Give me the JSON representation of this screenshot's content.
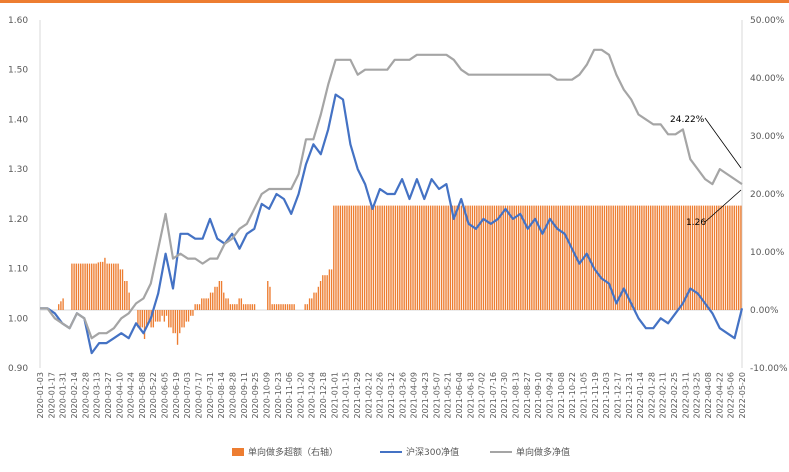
{
  "chart_data": {
    "type": "bar+line",
    "left_axis": {
      "ylim": [
        0.9,
        1.6
      ],
      "ticks": [
        "0.90",
        "1.00",
        "1.10",
        "1.20",
        "1.30",
        "1.40",
        "1.50",
        "1.60"
      ]
    },
    "right_axis": {
      "ylim": [
        -10,
        50
      ],
      "ticks": [
        "-10.00%",
        "0.00%",
        "10.00%",
        "20.00%",
        "30.00%",
        "40.00%",
        "50.00%"
      ]
    },
    "x_tick_labels": [
      "2020-01-03",
      "2020-01-17",
      "2020-01-31",
      "2020-02-14",
      "2020-02-28",
      "2020-03-13",
      "2020-03-27",
      "2020-04-10",
      "2020-04-24",
      "2020-05-08",
      "2020-05-22",
      "2020-06-05",
      "2020-06-19",
      "2020-07-03",
      "2020-07-17",
      "2020-07-31",
      "2020-08-14",
      "2020-08-28",
      "2020-09-11",
      "2020-09-25",
      "2020-10-09",
      "2020-10-23",
      "2020-11-06",
      "2020-11-20",
      "2020-12-04",
      "2020-12-18",
      "2021-01-01",
      "2021-01-15",
      "2021-01-29",
      "2021-02-12",
      "2021-02-26",
      "2021-03-12",
      "2021-03-26",
      "2021-04-09",
      "2021-04-23",
      "2021-05-07",
      "2021-05-21",
      "2021-06-04",
      "2021-06-18",
      "2021-07-02",
      "2021-07-16",
      "2021-07-30",
      "2021-08-13",
      "2021-08-27",
      "2021-09-10",
      "2021-09-24",
      "2021-10-08",
      "2021-10-22",
      "2021-11-05",
      "2021-11-19",
      "2021-12-03",
      "2021-12-17",
      "2021-12-31",
      "2022-01-14",
      "2022-01-28",
      "2022-02-11",
      "2022-02-25",
      "2022-03-11",
      "2022-03-25",
      "2022-04-08",
      "2022-04-22",
      "2022-05-06",
      "2022-05-20"
    ],
    "series": [
      {
        "name": "单向做多超额（右轴）",
        "kind": "bar",
        "axis": "right",
        "color": "#ED7D31",
        "values": [
          0,
          0,
          0,
          0,
          0,
          0,
          0,
          0,
          1,
          1.5,
          2,
          0,
          0,
          0,
          8,
          8,
          8,
          8,
          8,
          8,
          8,
          8,
          8,
          8,
          8,
          8,
          8.2,
          8.3,
          8.3,
          9,
          8,
          8,
          8,
          8,
          8,
          8,
          7,
          7,
          5,
          5,
          3,
          0,
          0,
          0,
          -3,
          -3,
          -3,
          -5,
          -3,
          -2,
          -3,
          -3,
          -2,
          -2,
          -2,
          -1,
          -2,
          -1,
          -3,
          -3,
          -4,
          -4,
          -6,
          -4,
          -3,
          -3,
          -2,
          -2,
          -1,
          -1,
          1,
          1,
          1,
          2,
          2,
          2,
          2,
          3,
          3,
          4,
          4,
          5,
          5,
          3,
          2,
          2,
          1,
          1,
          1,
          1,
          2,
          2,
          1,
          1,
          1,
          1,
          1,
          1,
          0,
          0,
          0,
          0,
          0,
          5,
          4,
          1,
          1,
          1,
          1,
          1,
          1,
          1,
          1,
          1,
          1,
          1,
          0,
          0,
          0,
          0,
          1,
          1,
          2,
          2,
          3,
          3,
          4,
          5,
          6,
          6,
          6,
          7,
          7,
          18,
          18,
          18,
          18,
          18,
          18,
          18,
          18,
          18,
          18,
          18,
          18,
          18,
          18,
          18,
          18,
          18,
          18,
          18,
          18,
          18,
          18,
          18,
          18,
          18,
          18,
          18,
          18,
          18,
          18,
          18,
          18,
          18,
          18,
          18,
          18,
          18,
          18,
          18,
          18,
          18,
          18,
          18,
          18,
          18,
          18,
          18,
          18,
          18,
          18,
          18,
          18,
          18,
          18,
          18,
          18,
          18,
          18,
          18,
          18,
          18,
          18,
          18,
          18,
          18,
          18,
          18,
          18,
          18,
          18,
          18,
          18,
          18,
          18,
          18,
          18,
          18,
          18,
          18,
          18,
          18,
          18,
          18,
          18,
          18,
          18,
          18,
          18,
          18,
          18,
          18,
          18,
          18,
          18,
          18,
          18,
          18,
          18,
          18,
          18,
          18,
          18,
          18,
          18,
          18,
          18,
          18,
          18,
          18,
          18,
          18,
          18,
          18,
          18,
          18,
          18,
          18,
          18,
          18,
          18,
          18,
          18,
          18,
          18,
          18,
          18,
          18,
          18,
          18,
          18,
          18,
          18,
          18,
          18,
          18,
          18,
          18,
          18,
          18,
          18,
          18,
          18,
          18,
          18,
          18,
          18,
          18,
          18,
          18,
          18,
          18,
          18,
          18,
          18,
          18,
          18,
          18,
          18,
          18,
          18,
          18,
          18,
          18,
          18,
          18,
          18,
          18,
          18,
          18,
          18,
          18,
          18,
          18,
          18,
          18,
          18,
          18,
          18,
          18,
          18,
          18,
          18,
          18,
          18,
          18,
          18
        ]
      },
      {
        "name": "沪深300净值",
        "kind": "line",
        "axis": "left",
        "color": "#4472C4",
        "values": [
          1.02,
          1.02,
          1.01,
          0.99,
          0.98,
          1.01,
          1.0,
          0.93,
          0.95,
          0.95,
          0.96,
          0.97,
          0.96,
          0.99,
          0.97,
          1.0,
          1.05,
          1.13,
          1.06,
          1.17,
          1.17,
          1.16,
          1.16,
          1.2,
          1.16,
          1.15,
          1.17,
          1.14,
          1.17,
          1.18,
          1.23,
          1.22,
          1.25,
          1.24,
          1.21,
          1.25,
          1.31,
          1.35,
          1.33,
          1.38,
          1.45,
          1.44,
          1.35,
          1.3,
          1.27,
          1.22,
          1.26,
          1.25,
          1.25,
          1.28,
          1.24,
          1.28,
          1.24,
          1.28,
          1.26,
          1.27,
          1.2,
          1.24,
          1.19,
          1.18,
          1.2,
          1.19,
          1.2,
          1.22,
          1.2,
          1.21,
          1.18,
          1.2,
          1.17,
          1.2,
          1.18,
          1.17,
          1.14,
          1.11,
          1.13,
          1.1,
          1.08,
          1.07,
          1.03,
          1.06,
          1.03,
          1.0,
          0.98,
          0.98,
          1.0,
          0.99,
          1.01,
          1.03,
          1.06,
          1.05,
          1.03,
          1.01,
          0.98,
          0.97,
          0.96,
          1.02
        ]
      },
      {
        "name": "单向做多净值",
        "kind": "line",
        "axis": "left",
        "color": "#A5A5A5",
        "values": [
          1.02,
          1.02,
          1.0,
          0.99,
          0.98,
          1.01,
          1.0,
          0.96,
          0.97,
          0.97,
          0.98,
          1.0,
          1.01,
          1.03,
          1.04,
          1.07,
          1.14,
          1.21,
          1.12,
          1.13,
          1.12,
          1.12,
          1.11,
          1.12,
          1.12,
          1.15,
          1.16,
          1.18,
          1.19,
          1.22,
          1.25,
          1.26,
          1.26,
          1.26,
          1.26,
          1.29,
          1.36,
          1.36,
          1.41,
          1.47,
          1.52,
          1.52,
          1.52,
          1.49,
          1.5,
          1.5,
          1.5,
          1.5,
          1.52,
          1.52,
          1.52,
          1.53,
          1.53,
          1.53,
          1.53,
          1.53,
          1.52,
          1.5,
          1.49,
          1.49,
          1.49,
          1.49,
          1.49,
          1.49,
          1.49,
          1.49,
          1.49,
          1.49,
          1.49,
          1.49,
          1.48,
          1.48,
          1.48,
          1.49,
          1.51,
          1.54,
          1.54,
          1.53,
          1.49,
          1.46,
          1.44,
          1.41,
          1.4,
          1.39,
          1.39,
          1.37,
          1.37,
          1.38,
          1.32,
          1.3,
          1.28,
          1.27,
          1.3,
          1.29,
          1.28,
          1.27
        ]
      }
    ],
    "annotations": [
      {
        "text": "24.22%",
        "axis": "right",
        "y": 24.22
      },
      {
        "text": "1.26",
        "axis": "left",
        "y": 1.26
      }
    ],
    "grid": false,
    "legend_position": "bottom"
  },
  "legend": {
    "items": [
      {
        "label": "单向做多超额（右轴）"
      },
      {
        "label": "沪深300净值"
      },
      {
        "label": "单向做多净值"
      }
    ]
  }
}
